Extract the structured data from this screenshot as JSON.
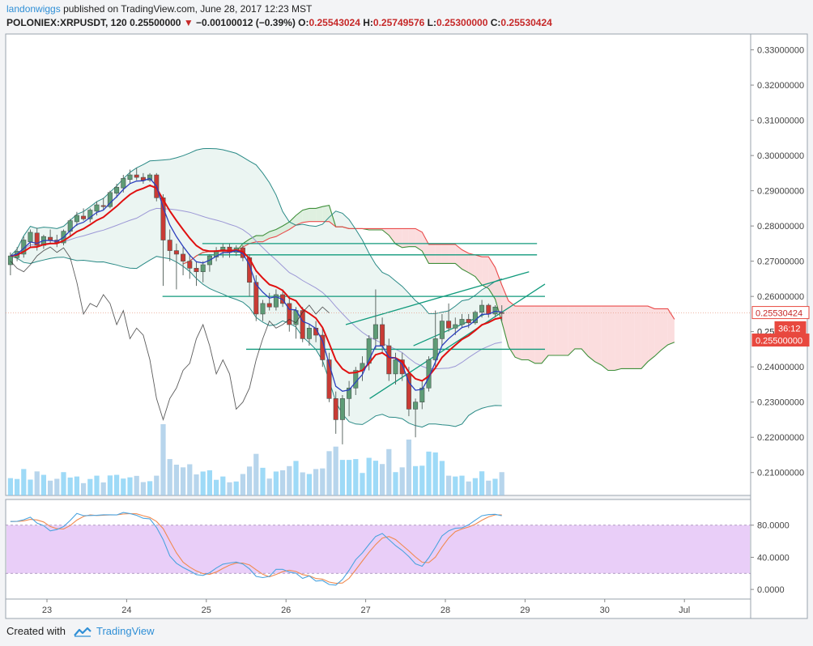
{
  "header": {
    "author": "landonwiggs",
    "published_text": "published on TradingView.com, June 28, 2017 12:23 MST",
    "symbol": "POLONIEX:XRPUSDT, 120",
    "last": "0.25500000",
    "change": "−0.00100012 (−0.39%)",
    "open_label": "O:",
    "open": "0.25543024",
    "high_label": "H:",
    "high": "0.25749576",
    "low_label": "L:",
    "low": "0.25300000",
    "close_label": "C:",
    "close": "0.25530424"
  },
  "footer": {
    "created_with": "Created with",
    "brand": "TradingView"
  },
  "colors": {
    "bull": "#5e9c76",
    "bear": "#c93b35",
    "bb_line": "#2a8a86",
    "bb_fill": "#e9f4f1",
    "ma_red": "#e01010",
    "ma_blue": "#2c3fbd",
    "cloud_green_line": "#3f8f3a",
    "cloud_red_line": "#ea4b4b",
    "cloud_red_fill": "#f9d2d3",
    "cloud_green_fill": "#d4ebd6",
    "trend": "#109a7c",
    "volume": "#7dcdf4",
    "stoch_k": "#4aa3df",
    "stoch_d": "#f08a50",
    "stoch_band": "#e7c9f7",
    "price_tag": "#e8483f"
  },
  "chart_data": [
    {
      "type": "candlestick",
      "title": "",
      "x_tick_labels": [
        "23",
        "24",
        "25",
        "26",
        "27",
        "28",
        "29",
        "30",
        "Jul"
      ],
      "y_tick_labels": [
        "0.33000000",
        "0.32000000",
        "0.31000000",
        "0.30000000",
        "0.29000000",
        "0.28000000",
        "0.27000000",
        "0.26000000",
        "0.25000000",
        "0.24000000",
        "0.23000000",
        "0.22000000",
        "0.21000000"
      ],
      "ylim": [
        0.2035,
        0.3345
      ],
      "x_start_day": 22.5,
      "bar_hours": 2,
      "candles": [
        [
          0.269,
          0.2725,
          0.266,
          0.2715
        ],
        [
          0.271,
          0.274,
          0.27,
          0.2728
        ],
        [
          0.272,
          0.277,
          0.271,
          0.276
        ],
        [
          0.2755,
          0.279,
          0.274,
          0.2782
        ],
        [
          0.278,
          0.2795,
          0.273,
          0.2745
        ],
        [
          0.2745,
          0.2775,
          0.2735,
          0.277
        ],
        [
          0.2768,
          0.279,
          0.275,
          0.276
        ],
        [
          0.276,
          0.2775,
          0.274,
          0.2752
        ],
        [
          0.2752,
          0.279,
          0.2745,
          0.2785
        ],
        [
          0.2785,
          0.282,
          0.277,
          0.2815
        ],
        [
          0.2812,
          0.284,
          0.28,
          0.283
        ],
        [
          0.2828,
          0.285,
          0.2815,
          0.282
        ],
        [
          0.282,
          0.285,
          0.281,
          0.2845
        ],
        [
          0.2842,
          0.287,
          0.283,
          0.286
        ],
        [
          0.2858,
          0.288,
          0.2845,
          0.2855
        ],
        [
          0.2855,
          0.29,
          0.285,
          0.2895
        ],
        [
          0.2893,
          0.292,
          0.288,
          0.291
        ],
        [
          0.2908,
          0.2945,
          0.2895,
          0.2935
        ],
        [
          0.2932,
          0.296,
          0.292,
          0.2945
        ],
        [
          0.2945,
          0.2965,
          0.293,
          0.2938
        ],
        [
          0.2938,
          0.295,
          0.292,
          0.293
        ],
        [
          0.293,
          0.295,
          0.2925,
          0.2945
        ],
        [
          0.2945,
          0.295,
          0.287,
          0.288
        ],
        [
          0.288,
          0.289,
          0.263,
          0.276
        ],
        [
          0.276,
          0.279,
          0.27,
          0.273
        ],
        [
          0.273,
          0.275,
          0.262,
          0.272
        ],
        [
          0.272,
          0.274,
          0.266,
          0.27
        ],
        [
          0.27,
          0.272,
          0.265,
          0.268
        ],
        [
          0.268,
          0.27,
          0.263,
          0.267
        ],
        [
          0.267,
          0.27,
          0.264,
          0.269
        ],
        [
          0.269,
          0.272,
          0.267,
          0.2715
        ],
        [
          0.2712,
          0.274,
          0.27,
          0.273
        ],
        [
          0.273,
          0.275,
          0.271,
          0.274
        ],
        [
          0.274,
          0.275,
          0.271,
          0.2725
        ],
        [
          0.2725,
          0.2745,
          0.2715,
          0.2738
        ],
        [
          0.2738,
          0.2745,
          0.27,
          0.271
        ],
        [
          0.271,
          0.272,
          0.26,
          0.264
        ],
        [
          0.264,
          0.266,
          0.253,
          0.255
        ],
        [
          0.255,
          0.259,
          0.253,
          0.258
        ],
        [
          0.258,
          0.261,
          0.256,
          0.257
        ],
        [
          0.257,
          0.262,
          0.256,
          0.2605
        ],
        [
          0.2605,
          0.262,
          0.257,
          0.258
        ],
        [
          0.258,
          0.26,
          0.25,
          0.252
        ],
        [
          0.252,
          0.257,
          0.248,
          0.256
        ],
        [
          0.256,
          0.257,
          0.247,
          0.248
        ],
        [
          0.248,
          0.252,
          0.246,
          0.251
        ],
        [
          0.251,
          0.253,
          0.247,
          0.249
        ],
        [
          0.249,
          0.251,
          0.24,
          0.242
        ],
        [
          0.242,
          0.244,
          0.23,
          0.231
        ],
        [
          0.231,
          0.233,
          0.221,
          0.225
        ],
        [
          0.225,
          0.232,
          0.218,
          0.231
        ],
        [
          0.231,
          0.236,
          0.226,
          0.234
        ],
        [
          0.234,
          0.24,
          0.232,
          0.239
        ],
        [
          0.239,
          0.243,
          0.236,
          0.241
        ],
        [
          0.241,
          0.249,
          0.239,
          0.248
        ],
        [
          0.248,
          0.262,
          0.245,
          0.252
        ],
        [
          0.252,
          0.254,
          0.244,
          0.246
        ],
        [
          0.246,
          0.248,
          0.236,
          0.238
        ],
        [
          0.238,
          0.244,
          0.235,
          0.242
        ],
        [
          0.242,
          0.244,
          0.236,
          0.238
        ],
        [
          0.238,
          0.24,
          0.226,
          0.228
        ],
        [
          0.228,
          0.231,
          0.22,
          0.23
        ],
        [
          0.23,
          0.236,
          0.228,
          0.234
        ],
        [
          0.234,
          0.243,
          0.233,
          0.242
        ],
        [
          0.242,
          0.256,
          0.24,
          0.248
        ],
        [
          0.248,
          0.255,
          0.246,
          0.253
        ],
        [
          0.253,
          0.258,
          0.25,
          0.251
        ],
        [
          0.251,
          0.254,
          0.249,
          0.252
        ],
        [
          0.252,
          0.255,
          0.251,
          0.2535
        ],
        [
          0.2535,
          0.255,
          0.251,
          0.2525
        ],
        [
          0.2525,
          0.256,
          0.252,
          0.2555
        ],
        [
          0.2555,
          0.259,
          0.254,
          0.2575
        ],
        [
          0.2575,
          0.258,
          0.254,
          0.255
        ],
        [
          0.255,
          0.2575,
          0.254,
          0.257
        ],
        [
          0.2554,
          0.2575,
          0.253,
          0.2553
        ]
      ],
      "horizontal_levels": [
        {
          "y": 0.275,
          "x0": 24.95,
          "x1": 29.15
        },
        {
          "y": 0.2718,
          "x0": 24.9,
          "x1": 29.15
        },
        {
          "y": 0.26,
          "x0": 24.45,
          "x1": 29.25
        },
        {
          "y": 0.245,
          "x0": 25.5,
          "x1": 29.25
        }
      ],
      "trend_lines": [
        {
          "from": [
            26.75,
            0.252
          ],
          "to": [
            29.05,
            0.267
          ]
        },
        {
          "from": [
            27.05,
            0.231
          ],
          "to": [
            29.25,
            0.2635
          ]
        },
        {
          "from": [
            27.6,
            0.246
          ],
          "to": [
            28.5,
            0.255
          ]
        }
      ],
      "last_price_line": 0.25530424,
      "price_tags": [
        {
          "label": "0.25530424",
          "y": 0.25530424,
          "style": "outline"
        },
        {
          "label": "36:12",
          "y": 0.251,
          "style": "filled"
        },
        {
          "label": "0.25500000",
          "y": 0.2475,
          "style": "filled"
        }
      ],
      "visible_axis_text": {
        "label": "0.250",
        "y": 0.25
      }
    },
    {
      "type": "line",
      "title": "",
      "y_tick_labels": [
        "80.0000",
        "40.0000",
        "0.0000"
      ],
      "ylim": [
        -12,
        112
      ],
      "band": [
        20,
        80
      ]
    }
  ]
}
